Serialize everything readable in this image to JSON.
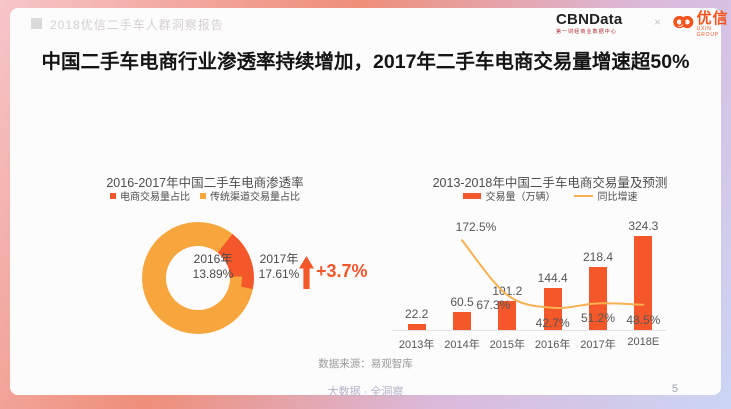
{
  "page": {
    "header_title": "2018优信二手车人群洞察报告",
    "logos": {
      "cbndata_name": "CBNData",
      "cbndata_subtitle": "第一财经商业数据中心",
      "separator": "×",
      "uxin_name": "优信",
      "uxin_subtitle": "UXIN GROUP"
    },
    "main_title": "中国二手车电商行业渗透率持续增加，2017年二手车电商交易量增速超50%",
    "source_note": "数据来源：易观智库",
    "footer_slogan": "大数据 · 全洞察",
    "page_number": "5"
  },
  "colors": {
    "accent_red": "#f4572a",
    "accent_yellow": "#f7a63e",
    "line_yellow": "#f9b050",
    "label_gray": "#565656"
  },
  "chart_data": [
    {
      "type": "pie",
      "subtype": "concentric-donut",
      "title": "2016-2017年中国二手车电商渗透率",
      "legend": [
        "电商交易量占比",
        "传统渠道交易量占比"
      ],
      "legend_position": "top",
      "start_angle_deg": 38,
      "rings": [
        {
          "label": "2016年",
          "value_pct": 13.89,
          "ring": "inner"
        },
        {
          "label": "2017年",
          "value_pct": 17.61,
          "ring": "outer"
        }
      ],
      "annotation": {
        "delta_label": "+3.7%",
        "icon": "arrow-up"
      }
    },
    {
      "type": "bar",
      "title": "2013-2018年中国二手车电商交易量及预测",
      "categories": [
        "2013年",
        "2014年",
        "2015年",
        "2016年",
        "2017年",
        "2018E"
      ],
      "series": [
        {
          "name": "交易量（万辆）",
          "type": "bar",
          "values": [
            22.2,
            60.5,
            101.2,
            144.4,
            218.4,
            324.3
          ]
        },
        {
          "name": "同比增速",
          "type": "line",
          "unit": "%",
          "values": [
            null,
            172.5,
            67.3,
            42.7,
            51.2,
            48.5
          ]
        }
      ],
      "legend_position": "top",
      "grid": false,
      "value_labels": true,
      "ylim_bar": [
        0,
        390
      ],
      "ylim_line_pct": [
        0,
        220
      ]
    }
  ]
}
